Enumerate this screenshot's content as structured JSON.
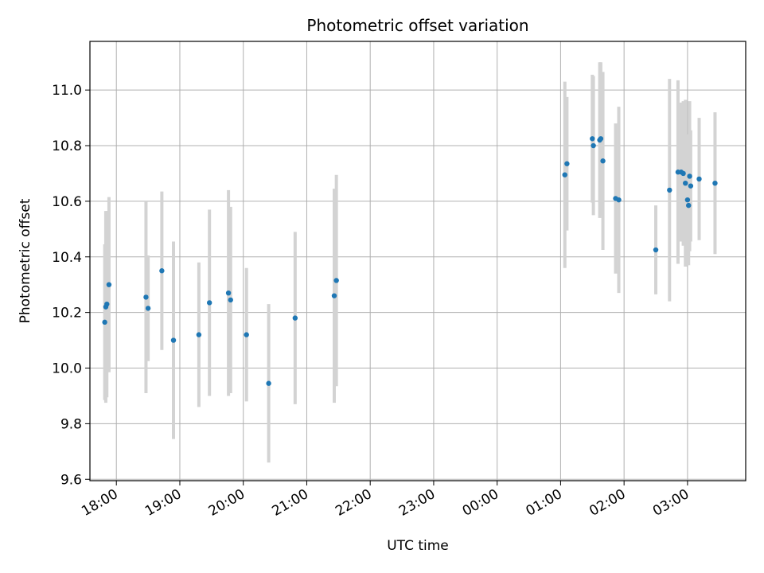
{
  "chart_data": {
    "type": "scatter",
    "title": "Photometric offset variation",
    "xlabel": "UTC time",
    "ylabel": "Photometric offset",
    "x_axis": "time (hours, UTC; ticks wrap past midnight)",
    "xlim": [
      "17:35",
      "03:55"
    ],
    "ylim": [
      9.595,
      11.175
    ],
    "x_ticks": [
      "18:00",
      "19:00",
      "20:00",
      "21:00",
      "22:00",
      "23:00",
      "00:00",
      "01:00",
      "02:00",
      "03:00"
    ],
    "y_ticks": [
      "9.6",
      "9.8",
      "10.0",
      "10.2",
      "10.4",
      "10.6",
      "10.8",
      "11.0"
    ],
    "grid": true,
    "legend": "none",
    "colors": {
      "points": "#1f77b4",
      "errorbars": "#d3d3d3",
      "grid": "#b0b0b0"
    },
    "points": [
      {
        "x": "17:49",
        "y": 10.165,
        "err": 0.28
      },
      {
        "x": "17:50",
        "y": 10.22,
        "err": 0.345
      },
      {
        "x": "17:51",
        "y": 10.23,
        "err": 0.335
      },
      {
        "x": "17:53",
        "y": 10.3,
        "err": 0.315
      },
      {
        "x": "18:28",
        "y": 10.255,
        "err": 0.345
      },
      {
        "x": "18:30",
        "y": 10.215,
        "err": 0.19
      },
      {
        "x": "18:43",
        "y": 10.35,
        "err": 0.285
      },
      {
        "x": "18:54",
        "y": 10.1,
        "err": 0.355
      },
      {
        "x": "19:18",
        "y": 10.12,
        "err": 0.26
      },
      {
        "x": "19:28",
        "y": 10.235,
        "err": 0.335
      },
      {
        "x": "19:46",
        "y": 10.27,
        "err": 0.37
      },
      {
        "x": "19:48",
        "y": 10.245,
        "err": 0.335
      },
      {
        "x": "20:03",
        "y": 10.12,
        "err": 0.24
      },
      {
        "x": "20:24",
        "y": 9.945,
        "err": 0.285
      },
      {
        "x": "20:49",
        "y": 10.18,
        "err": 0.31
      },
      {
        "x": "21:26",
        "y": 10.26,
        "err": 0.385
      },
      {
        "x": "21:28",
        "y": 10.315,
        "err": 0.38
      },
      {
        "x": "01:04",
        "y": 10.695,
        "err": 0.335
      },
      {
        "x": "01:06",
        "y": 10.735,
        "err": 0.24
      },
      {
        "x": "01:30",
        "y": 10.825,
        "err": 0.23
      },
      {
        "x": "01:31",
        "y": 10.8,
        "err": 0.25
      },
      {
        "x": "01:37",
        "y": 10.82,
        "err": 0.28
      },
      {
        "x": "01:38",
        "y": 10.825,
        "err": 0.275
      },
      {
        "x": "01:40",
        "y": 10.745,
        "err": 0.32
      },
      {
        "x": "01:52",
        "y": 10.61,
        "err": 0.27
      },
      {
        "x": "01:55",
        "y": 10.605,
        "err": 0.335
      },
      {
        "x": "02:30",
        "y": 10.425,
        "err": 0.16
      },
      {
        "x": "02:43",
        "y": 10.64,
        "err": 0.4
      },
      {
        "x": "02:51",
        "y": 10.705,
        "err": 0.33
      },
      {
        "x": "02:54",
        "y": 10.705,
        "err": 0.25
      },
      {
        "x": "02:56",
        "y": 10.7,
        "err": 0.26
      },
      {
        "x": "02:58",
        "y": 10.665,
        "err": 0.3
      },
      {
        "x": "03:00",
        "y": 10.605,
        "err": 0.235
      },
      {
        "x": "03:01",
        "y": 10.585,
        "err": 0.215
      },
      {
        "x": "03:02",
        "y": 10.69,
        "err": 0.27
      },
      {
        "x": "03:03",
        "y": 10.655,
        "err": 0.2
      },
      {
        "x": "03:11",
        "y": 10.68,
        "err": 0.22
      },
      {
        "x": "03:26",
        "y": 10.665,
        "err": 0.255
      }
    ]
  }
}
